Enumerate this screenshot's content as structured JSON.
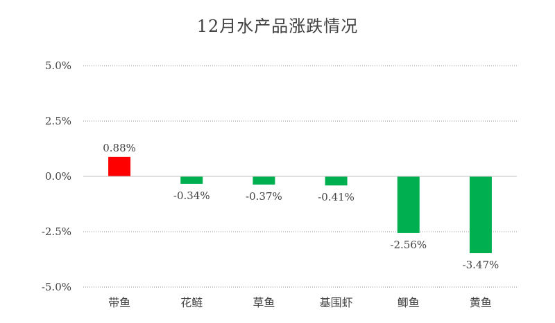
{
  "chart_data": {
    "type": "bar",
    "title": "12月水产品涨跌情况",
    "categories": [
      "带鱼",
      "花鲢",
      "草鱼",
      "基围虾",
      "鲫鱼",
      "黄鱼"
    ],
    "values": [
      0.88,
      -0.34,
      -0.37,
      -0.41,
      -2.56,
      -3.47
    ],
    "data_labels": [
      "0.88%",
      "-0.34%",
      "-0.37%",
      "-0.41%",
      "-2.56%",
      "-3.47%"
    ],
    "y_ticks": [
      5.0,
      2.5,
      0.0,
      -2.5,
      -5.0
    ],
    "y_tick_labels": [
      "5.0%",
      "2.5%",
      "0.0%",
      "-2.5%",
      "-5.0%"
    ],
    "ylim": [
      -5.0,
      5.0
    ],
    "xlabel": "",
    "ylabel": "",
    "grid": true,
    "grid_style": "dotted",
    "legend": false,
    "colors": {
      "positive": "#ff0000",
      "negative": "#00b050",
      "grid": "#8c8c8c",
      "axis": "#bfbfbf",
      "text": "#404040"
    }
  }
}
